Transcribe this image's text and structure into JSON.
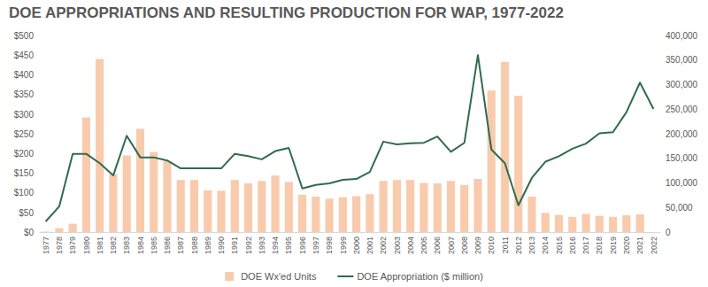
{
  "chart_data": {
    "type": "bar",
    "title": "DOE APPROPRIATIONS AND RESULTING PRODUCTION FOR WAP, 1977-2022",
    "categories": [
      "1977",
      "1978",
      "1979",
      "1980",
      "1981",
      "1982",
      "1983",
      "1984",
      "1985",
      "1986",
      "1987",
      "1988",
      "1989",
      "1990",
      "1991",
      "1992",
      "1993",
      "1994",
      "1995",
      "1996",
      "1997",
      "1998",
      "1999",
      "2000",
      "2001",
      "2002",
      "2003",
      "2004",
      "2005",
      "2006",
      "2007",
      "2008",
      "2009",
      "2010",
      "2011",
      "2012",
      "2013",
      "2014",
      "2015",
      "2016",
      "2017",
      "2018",
      "2019",
      "2020",
      "2021",
      "2022"
    ],
    "series": [
      {
        "name": "DOE Wx'ed Units",
        "type": "bar",
        "axis": "y2",
        "color": "#f8cbad",
        "values": [
          1000,
          8000,
          17000,
          233000,
          352000,
          118000,
          156000,
          210000,
          163000,
          144000,
          106000,
          106000,
          85000,
          84000,
          106000,
          99000,
          104000,
          115000,
          102000,
          76000,
          72000,
          68000,
          71000,
          73000,
          77000,
          104000,
          106000,
          106000,
          100000,
          99000,
          104000,
          96000,
          108000,
          288000,
          346000,
          277000,
          72000,
          39000,
          35000,
          31000,
          37000,
          33000,
          31000,
          34000,
          36000,
          0
        ]
      },
      {
        "name": "DOE Appropriation ($ million)",
        "type": "line",
        "color": "#2f6b4f",
        "values": [
          27,
          65,
          199,
          199,
          175,
          144,
          245,
          190,
          190,
          182,
          162,
          162,
          162,
          162,
          199,
          193,
          185,
          206,
          214,
          111,
          120,
          124,
          133,
          135,
          153,
          230,
          223,
          226,
          227,
          243,
          204,
          227,
          450,
          210,
          175,
          68,
          138,
          179,
          193,
          212,
          225,
          251,
          254,
          305,
          380,
          313
        ]
      }
    ],
    "ylim": [
      0,
      500
    ],
    "yticks": [
      {
        "value": 0,
        "label": "$0"
      },
      {
        "value": 50,
        "label": "$50"
      },
      {
        "value": 100,
        "label": "$100"
      },
      {
        "value": 150,
        "label": "$150"
      },
      {
        "value": 200,
        "label": "$200"
      },
      {
        "value": 250,
        "label": "$250"
      },
      {
        "value": 300,
        "label": "$300"
      },
      {
        "value": 350,
        "label": "$350"
      },
      {
        "value": 400,
        "label": "$400"
      },
      {
        "value": 450,
        "label": "$450"
      },
      {
        "value": 500,
        "label": "$500"
      }
    ],
    "y2lim": [
      0,
      400000
    ],
    "y2ticks": [
      0,
      {
        "value": 50000,
        "label": "50,000"
      },
      {
        "value": 100000,
        "label": "100,000"
      },
      {
        "value": 150000,
        "label": "150,000"
      },
      {
        "value": 200000,
        "label": "200,000"
      },
      {
        "value": 250000,
        "label": "250,000"
      },
      {
        "value": 300000,
        "label": "300,000"
      },
      {
        "value": 350000,
        "label": "350,000"
      },
      {
        "value": 400000,
        "label": "400,000"
      }
    ],
    "grid": false,
    "legend": "bottom"
  }
}
